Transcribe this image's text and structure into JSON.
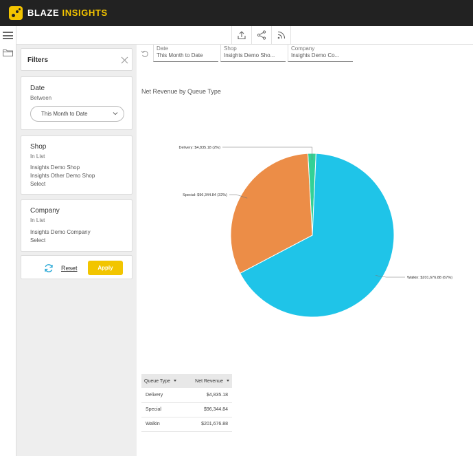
{
  "brand": {
    "part1": "BLAZE ",
    "part2": "INSIGHTS"
  },
  "colors": {
    "accent": "#f2c500",
    "walkin": "#1fc4e8",
    "special": "#ec8d47",
    "delivery": "#33d196"
  },
  "toolbar": {
    "icons": [
      "export-icon",
      "share-icon",
      "feed-icon"
    ]
  },
  "filters": {
    "title": "Filters",
    "date": {
      "label": "Date",
      "operator": "Between",
      "value": "This Month to Date"
    },
    "shop": {
      "label": "Shop",
      "operator": "In List",
      "values": [
        "Insights Demo Shop",
        "Insights Other Demo Shop"
      ],
      "action": "Select"
    },
    "company": {
      "label": "Company",
      "operator": "In List",
      "values": [
        "Insights Demo Company"
      ],
      "action": "Select"
    },
    "reset_label": "Reset",
    "apply_label": "Apply"
  },
  "chips": [
    {
      "key": "Date",
      "value": "This Month to Date"
    },
    {
      "key": "Shop",
      "value": "Insights Demo Sho..."
    },
    {
      "key": "Company",
      "value": "Insights Demo Co..."
    }
  ],
  "chart_data": {
    "type": "pie",
    "title": "Net Revenue by Queue Type",
    "slices": [
      {
        "name": "Walkin",
        "value": 201676.88,
        "percent": 67,
        "label": "Walkin: $201,676.88 (67%)"
      },
      {
        "name": "Special",
        "value": 96344.84,
        "percent": 32,
        "label": "Special: $96,344.84 (32%)"
      },
      {
        "name": "Delivery",
        "value": 4835.18,
        "percent": 2,
        "label": "Delivery: $4,835.18 (2%)"
      }
    ]
  },
  "table": {
    "headers": [
      "Queue Type",
      "Net Revenue"
    ],
    "rows": [
      [
        "Delivery",
        "$4,835.18"
      ],
      [
        "Special",
        "$96,344.84"
      ],
      [
        "Walkin",
        "$201,676.88"
      ]
    ]
  }
}
